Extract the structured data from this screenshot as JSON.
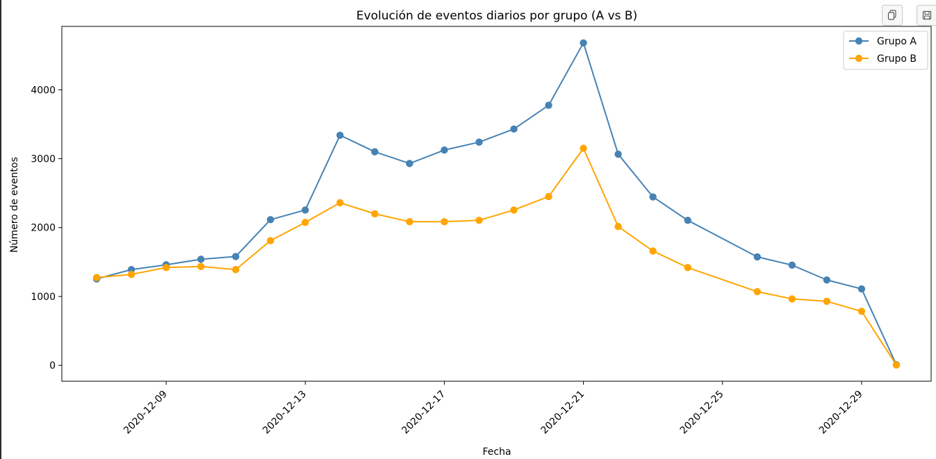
{
  "toolbar": {
    "copy_icon": "copy-icon",
    "save_icon": "floppy-disk-icon"
  },
  "chart_data": {
    "type": "line",
    "title": "Evolución de eventos diarios por grupo (A vs B)",
    "xlabel": "Fecha",
    "ylabel": "Número de eventos",
    "x": [
      "2020-12-07",
      "2020-12-08",
      "2020-12-09",
      "2020-12-10",
      "2020-12-11",
      "2020-12-12",
      "2020-12-13",
      "2020-12-14",
      "2020-12-15",
      "2020-12-16",
      "2020-12-17",
      "2020-12-18",
      "2020-12-19",
      "2020-12-20",
      "2020-12-21",
      "2020-12-22",
      "2020-12-23",
      "2020-12-24",
      "2020-12-26",
      "2020-12-27",
      "2020-12-28",
      "2020-12-29",
      "2020-12-30"
    ],
    "series": [
      {
        "name": "Grupo A",
        "color": "#4682b4",
        "values": [
          1255,
          1390,
          1460,
          1540,
          1580,
          2115,
          2255,
          3340,
          3100,
          2930,
          3125,
          3240,
          3430,
          3775,
          4680,
          3065,
          2445,
          2105,
          1575,
          1455,
          1240,
          1110,
          10
        ]
      },
      {
        "name": "Grupo B",
        "color": "#ffa500",
        "values": [
          1275,
          1320,
          1420,
          1435,
          1390,
          1810,
          2075,
          2360,
          2200,
          2085,
          2085,
          2105,
          2255,
          2450,
          3150,
          2015,
          1660,
          1420,
          1070,
          965,
          930,
          785,
          5
        ]
      }
    ],
    "xticks": [
      "2020-12-09",
      "2020-12-13",
      "2020-12-17",
      "2020-12-21",
      "2020-12-25",
      "2020-12-29"
    ],
    "xlim": [
      "2020-12-06",
      "2020-12-31"
    ],
    "yticks": [
      0,
      1000,
      2000,
      3000,
      4000
    ],
    "ylim": [
      -230,
      4920
    ],
    "grid": false,
    "legend": "top-right",
    "xtick_rotation": 45
  }
}
